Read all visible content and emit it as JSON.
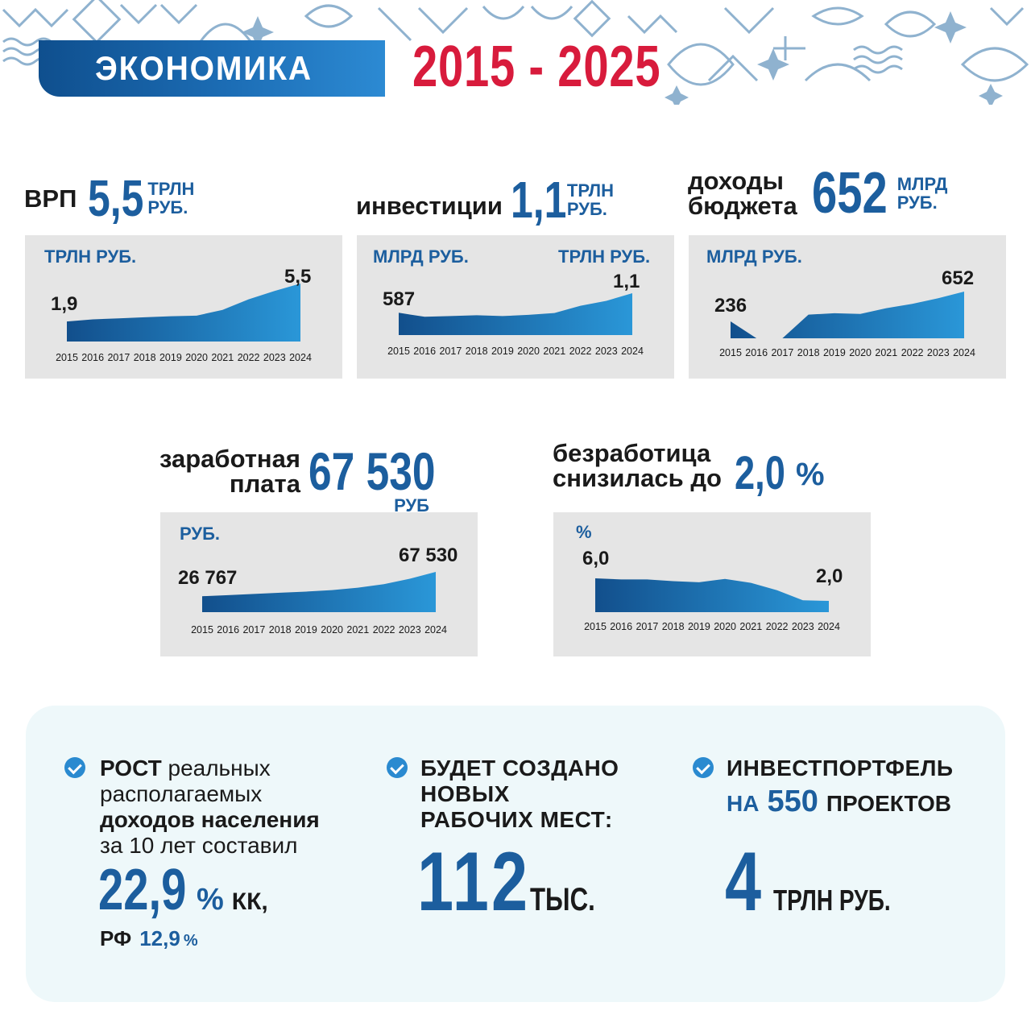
{
  "header": {
    "title": "ЭКОНОМИКА",
    "years": "2015 - 2025",
    "colors": {
      "banner": "#1c6db5",
      "years": "#d81b3c",
      "accent": "#1c5e9e",
      "pattern": "#8fb2cf"
    }
  },
  "grp": {
    "label": "ВРП",
    "value": "5,5",
    "unit_line1": "ТРЛН",
    "unit_line2": "РУБ."
  },
  "investments": {
    "label": "инвестиции",
    "value": "1,1",
    "unit_line1": "ТРЛН",
    "unit_line2": "РУБ."
  },
  "budget": {
    "label_line1": "доходы",
    "label_line2": "бюджета",
    "value": "652",
    "unit_line1": "МЛРД",
    "unit_line2": "РУБ."
  },
  "salary": {
    "label_line1": "заработная",
    "label_line2": "плата",
    "value": "67 530",
    "unit": "РУБ"
  },
  "unemployment": {
    "label_line1": "безработица",
    "label_line2": "снизилась до",
    "value": "2,0",
    "unit": "%"
  },
  "chart_data": [
    {
      "type": "area",
      "id": "grp",
      "unit_label": "ТРЛН РУБ.",
      "x": [
        "2015",
        "2016",
        "2017",
        "2018",
        "2019",
        "2020",
        "2021",
        "2022",
        "2023",
        "2024"
      ],
      "values": [
        1.9,
        2.1,
        2.2,
        2.3,
        2.4,
        2.45,
        3.0,
        4.0,
        4.8,
        5.5
      ],
      "ylim": [
        0,
        6
      ],
      "labels": [
        {
          "index": 0,
          "text": "1,9"
        },
        {
          "index": 9,
          "text": "5,5"
        }
      ],
      "grid": false
    },
    {
      "type": "area",
      "id": "investments",
      "unit_label": "МЛРД РУБ.",
      "unit_label_right": "ТРЛН РУБ.",
      "x": [
        "2015",
        "2016",
        "2017",
        "2018",
        "2019",
        "2020",
        "2021",
        "2022",
        "2023",
        "2024"
      ],
      "values": [
        587,
        480,
        500,
        520,
        500,
        530,
        580,
        770,
        900,
        1100
      ],
      "ylim": [
        0,
        1300
      ],
      "labels": [
        {
          "index": 0,
          "text": "587"
        },
        {
          "index": 9,
          "text": "1,1"
        }
      ],
      "grid": false
    },
    {
      "type": "area",
      "id": "budget",
      "unit_label": "МЛРД РУБ.",
      "x": [
        "2015",
        "2016",
        "2017",
        "2018",
        "2019",
        "2020",
        "2021",
        "2022",
        "2023",
        "2024"
      ],
      "values": [
        236,
        0,
        0,
        330,
        350,
        340,
        420,
        480,
        560,
        652
      ],
      "ylim": [
        0,
        800
      ],
      "labels": [
        {
          "index": 0,
          "text": "236"
        },
        {
          "index": 9,
          "text": "652"
        }
      ],
      "grid": false
    },
    {
      "type": "area",
      "id": "salary",
      "unit_label": "РУБ.",
      "x": [
        "2015",
        "2016",
        "2017",
        "2018",
        "2019",
        "2020",
        "2021",
        "2022",
        "2023",
        "2024"
      ],
      "values": [
        26767,
        28500,
        30500,
        32500,
        34500,
        37000,
        41000,
        47000,
        56000,
        67530
      ],
      "ylim": [
        0,
        80000
      ],
      "labels": [
        {
          "index": 0,
          "text": "26 767"
        },
        {
          "index": 9,
          "text": "67 530"
        }
      ],
      "grid": false
    },
    {
      "type": "area",
      "id": "unemployment",
      "unit_label": "%",
      "x": [
        "2015",
        "2016",
        "2017",
        "2018",
        "2019",
        "2020",
        "2021",
        "2022",
        "2023",
        "2024"
      ],
      "values": [
        6.0,
        5.8,
        5.8,
        5.5,
        5.3,
        5.9,
        5.2,
        3.9,
        2.1,
        2.0
      ],
      "ylim": [
        0,
        7
      ],
      "labels": [
        {
          "index": 0,
          "text": "6,0"
        },
        {
          "index": 9,
          "text": "2,0"
        }
      ],
      "grid": false
    }
  ],
  "bottom": {
    "income": {
      "bold1": "РОСТ",
      "text1": " реальных",
      "text2": "располагаемых",
      "bold3": "доходов населения",
      "text4": "за 10 лет составил",
      "value": "22,9",
      "value_unit": "%",
      "suffix": "КК,",
      "rf_label": "РФ",
      "rf_value": "12,9",
      "rf_unit": "%"
    },
    "jobs": {
      "line1": "БУДЕТ СОЗДАНО",
      "line2": "НОВЫХ",
      "line3": "РАБОЧИХ МЕСТ:",
      "value": "112",
      "unit": "ТЫС."
    },
    "portfolio": {
      "line1": "ИНВЕСТПОРТФЕЛЬ",
      "prefix": "НА",
      "count": "550",
      "suffix": "ПРОЕКТОВ",
      "value": "4",
      "unit": "ТРЛН РУБ."
    }
  }
}
